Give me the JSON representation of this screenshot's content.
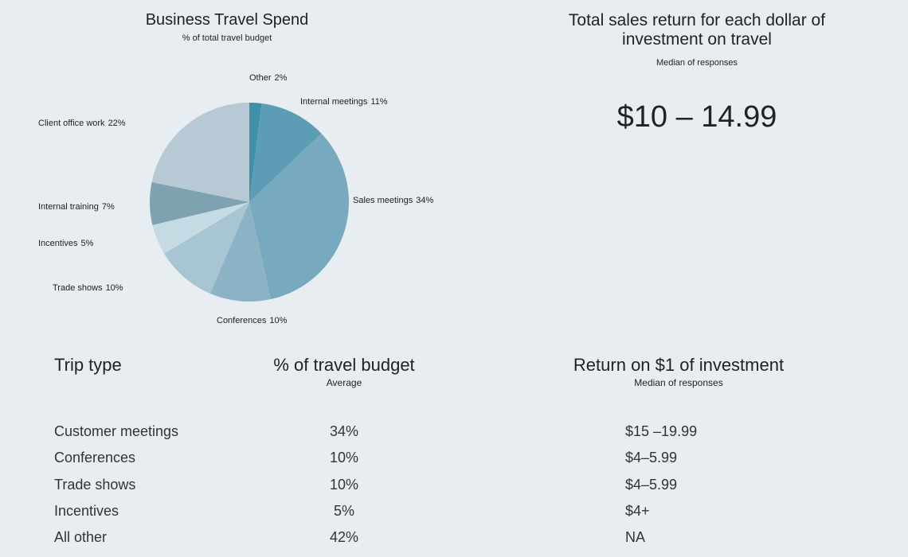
{
  "chart_data": {
    "type": "pie",
    "title": "Business Travel Spend",
    "subtitle": "% of total travel budget",
    "categories": [
      "Other",
      "Internal meetings",
      "Sales meetings",
      "Conferences",
      "Trade shows",
      "Incentives",
      "Internal training",
      "Client office work"
    ],
    "values": [
      2,
      11,
      34,
      10,
      10,
      5,
      7,
      22
    ],
    "value_labels": [
      "2%",
      "11%",
      "34%",
      "10%",
      "10%",
      "5%",
      "7%",
      "22%"
    ],
    "colors": [
      "#3f8fa8",
      "#5c9cb4",
      "#77a9bf",
      "#8cb3c5",
      "#a7c5d3",
      "#c6dae4",
      "#7fa2b1",
      "#b7c9d4"
    ]
  },
  "stat": {
    "title": "Total sales return for each dollar of investment on travel",
    "subtitle": "Median of responses",
    "value": "$10 – 14.99"
  },
  "table": {
    "headers": [
      "Trip type",
      "% of travel budget",
      "Return on $1 of investment"
    ],
    "subheaders": [
      null,
      "Average",
      "Median of responses"
    ],
    "rows": [
      [
        "Customer meetings",
        "34%",
        "$15 –19.99"
      ],
      [
        "Conferences",
        "10%",
        "$4–5.99"
      ],
      [
        "Trade shows",
        "10%",
        "$4–5.99"
      ],
      [
        "Incentives",
        "5%",
        "$4+"
      ],
      [
        "All other",
        "42%",
        "NA"
      ]
    ]
  }
}
